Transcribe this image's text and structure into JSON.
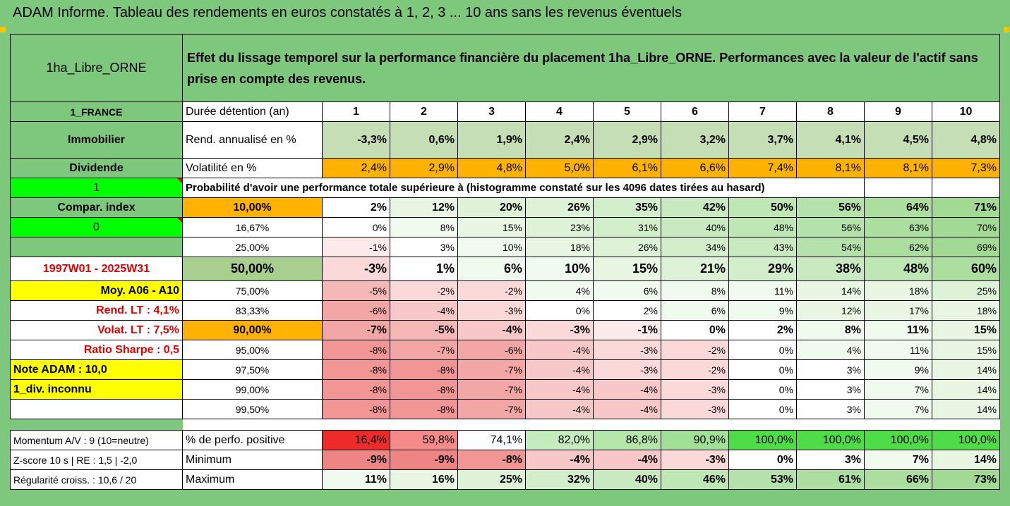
{
  "title": "ADAM Informe. Tableau des rendements en euros constatés à 1, 2, 3 ... 10 ans sans les revenus éventuels",
  "colors": {
    "green_header": "#7dc87d",
    "bright_green": "#00ff00",
    "yellow": "#ffff00",
    "orange": "#ffb300",
    "light_olive": "#c6deb5",
    "red_text": "#e00000"
  },
  "header": {
    "asset": "1ha_Libre_ORNE",
    "description": "Effet du lissage temporel sur la performance financière du placement 1ha_Libre_ORNE. Performances avec la valeur de l'actif sans prise en compte des revenus."
  },
  "side": {
    "country": "1_FRANCE",
    "category": "Immobilier",
    "type": "Dividende",
    "one": "1",
    "compar": "Compar. index",
    "zero": "0",
    "period": "1997W01 - 2025W31",
    "moy": "Moy. A06 - A10",
    "rend_lt": "Rend. LT :   4,1%",
    "volat_lt": "Volat. LT :   7,5%",
    "sharpe": "Ratio Sharpe :   0,5",
    "note": "Note ADAM : 10,0",
    "div": "1_div. inconnu",
    "momentum": "Momentum A/V : 9 (10=neutre)",
    "zscore": "Z-score 10 s  |  RE : 1,5  |  -2,0",
    "regularite": "Régularité croiss. : 10,6 / 20"
  },
  "labels": {
    "duree": "Durée détention (an)",
    "rend": "Rend. annualisé en %",
    "vol": "Volatilité en %",
    "proba": "Probabilité d'avoir une performance totale supérieure à (histogramme constaté sur les 4096 dates tirées au hasard)",
    "perf_pos": "% de perfo. positive",
    "min": "Minimum",
    "max": "Maximum"
  },
  "years": [
    "1",
    "2",
    "3",
    "4",
    "5",
    "6",
    "7",
    "8",
    "9",
    "10"
  ],
  "rend": [
    "-3,3%",
    "0,6%",
    "1,9%",
    "2,4%",
    "2,9%",
    "3,2%",
    "3,7%",
    "4,1%",
    "4,5%",
    "4,8%"
  ],
  "vol": [
    "2,4%",
    "2,9%",
    "4,8%",
    "5,0%",
    "6,1%",
    "6,6%",
    "7,4%",
    "8,1%",
    "8,1%",
    "7,3%"
  ],
  "prob_rows": [
    {
      "threshold": "10,00%",
      "values": [
        "2%",
        "12%",
        "20%",
        "26%",
        "35%",
        "42%",
        "50%",
        "56%",
        "64%",
        "71%"
      ]
    },
    {
      "threshold": "16,67%",
      "values": [
        "0%",
        "8%",
        "15%",
        "23%",
        "31%",
        "40%",
        "48%",
        "56%",
        "63%",
        "70%"
      ]
    },
    {
      "threshold": "25,00%",
      "values": [
        "-1%",
        "3%",
        "10%",
        "18%",
        "26%",
        "34%",
        "43%",
        "54%",
        "62%",
        "69%"
      ]
    },
    {
      "threshold": "50,00%",
      "values": [
        "-3%",
        "1%",
        "6%",
        "10%",
        "15%",
        "21%",
        "29%",
        "38%",
        "48%",
        "60%"
      ]
    },
    {
      "threshold": "75,00%",
      "values": [
        "-5%",
        "-2%",
        "-2%",
        "4%",
        "6%",
        "8%",
        "11%",
        "14%",
        "18%",
        "25%"
      ]
    },
    {
      "threshold": "83,33%",
      "values": [
        "-6%",
        "-4%",
        "-3%",
        "0%",
        "2%",
        "6%",
        "9%",
        "12%",
        "17%",
        "18%"
      ]
    },
    {
      "threshold": "90,00%",
      "values": [
        "-7%",
        "-5%",
        "-4%",
        "-3%",
        "-1%",
        "0%",
        "2%",
        "8%",
        "11%",
        "15%"
      ]
    },
    {
      "threshold": "95,00%",
      "values": [
        "-8%",
        "-7%",
        "-6%",
        "-4%",
        "-3%",
        "-2%",
        "0%",
        "4%",
        "11%",
        "15%"
      ]
    },
    {
      "threshold": "97,50%",
      "values": [
        "-8%",
        "-8%",
        "-7%",
        "-4%",
        "-3%",
        "-2%",
        "0%",
        "3%",
        "9%",
        "14%"
      ]
    },
    {
      "threshold": "99,00%",
      "values": [
        "-8%",
        "-8%",
        "-7%",
        "-4%",
        "-4%",
        "-3%",
        "0%",
        "3%",
        "7%",
        "14%"
      ]
    },
    {
      "threshold": "99,50%",
      "values": [
        "-8%",
        "-8%",
        "-7%",
        "-4%",
        "-4%",
        "-3%",
        "0%",
        "3%",
        "7%",
        "14%"
      ]
    }
  ],
  "perf_pos": [
    "16,4%",
    "59,8%",
    "74,1%",
    "82,0%",
    "86,8%",
    "90,9%",
    "100,0%",
    "100,0%",
    "100,0%",
    "100,0%"
  ],
  "min": [
    "-9%",
    "-9%",
    "-8%",
    "-4%",
    "-4%",
    "-3%",
    "0%",
    "3%",
    "7%",
    "14%"
  ],
  "max": [
    "11%",
    "16%",
    "25%",
    "32%",
    "40%",
    "46%",
    "53%",
    "61%",
    "66%",
    "73%"
  ]
}
